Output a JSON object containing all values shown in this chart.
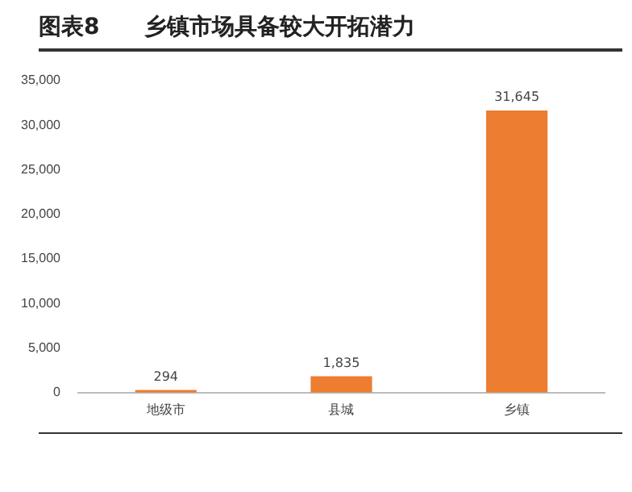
{
  "chart_data": {
    "type": "bar",
    "title": "图表8　　乡镇市场具备较大开拓潜力",
    "categories": [
      "地级市",
      "县城",
      "乡镇"
    ],
    "values": [
      294,
      1835,
      31645
    ],
    "color": "#ed7d31",
    "value_labels": [
      "294",
      "1,835",
      "31,645"
    ],
    "ylim": [
      0,
      35000
    ],
    "yticks": [
      0,
      {
        "value": 5000,
        "label": "5,000"
      },
      {
        "value": 10000,
        "label": "10,000"
      },
      {
        "value": 15000,
        "label": "15,000"
      },
      {
        "value": 20000,
        "label": "20,000"
      },
      {
        "value": 25000,
        "label": "25,000"
      },
      {
        "value": 30000,
        "label": "30,000"
      },
      {
        "value": 35000,
        "label": "35,000"
      }
    ],
    "grid": false,
    "legend": false
  }
}
